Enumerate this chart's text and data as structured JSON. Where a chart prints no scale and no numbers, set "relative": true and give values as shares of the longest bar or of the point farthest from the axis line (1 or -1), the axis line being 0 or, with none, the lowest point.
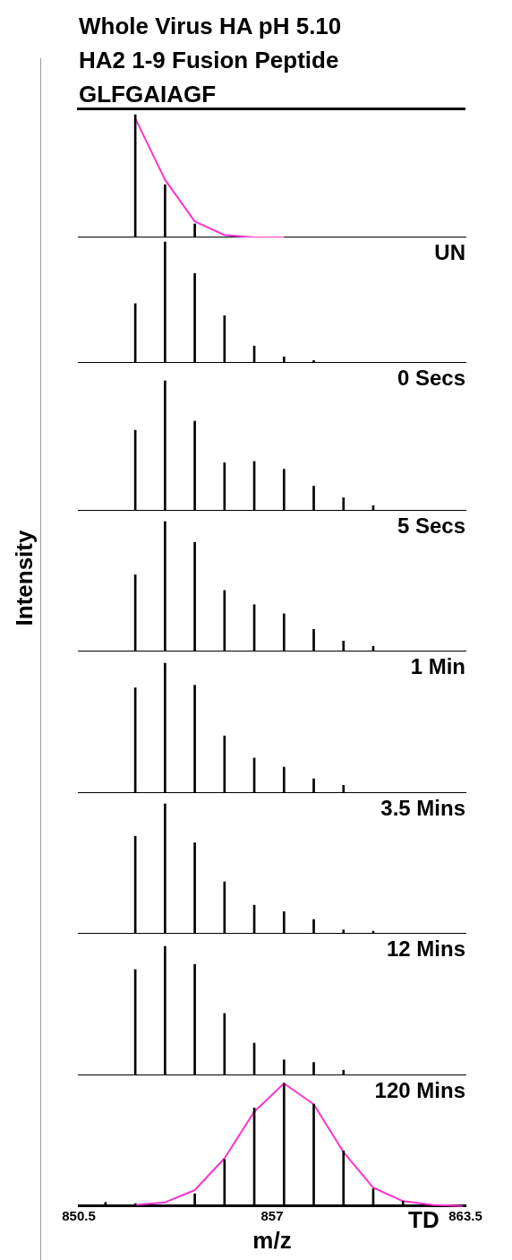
{
  "chart_data": [
    {
      "type": "bar",
      "title": "Whole Virus HA pH 5.10",
      "subtitle": "HA2 1-9 Fusion Peptide\nGLFGAIAGF",
      "relative": true,
      "tick_labels": false,
      "marker": "none",
      "xlim": [
        850.5,
        863.5
      ],
      "xticks": [
        850.5,
        857,
        863.5
      ],
      "x": [
        852.4,
        853.4,
        854.4
      ],
      "series": [
        {
          "color": "#000000",
          "values": [
            1,
            0.43,
            0.11
          ]
        },
        {
          "type": "line",
          "color": "#ff33cc",
          "x": [
            852.4,
            853.4,
            854.4,
            855.4,
            856.4,
            857.4
          ],
          "values": [
            0.97,
            0.47,
            0.13,
            0.02,
            0,
            0
          ]
        }
      ]
    },
    {
      "type": "bar",
      "relative": true,
      "tick_labels": false,
      "annotations": [
        "UN"
      ],
      "xlim": [
        850.5,
        863.5
      ],
      "xticks": [
        850.5,
        857,
        863.5
      ],
      "x": [
        852.4,
        853.4,
        854.4,
        855.4,
        856.4,
        857.4,
        858.4
      ],
      "series": [
        {
          "color": "#000000",
          "values": [
            0.49,
            1,
            0.74,
            0.39,
            0.14,
            0.05,
            0.02
          ]
        }
      ]
    },
    {
      "type": "bar",
      "relative": true,
      "tick_labels": false,
      "annotations": [
        "0 Secs"
      ],
      "xlim": [
        850.5,
        863.5
      ],
      "xticks": [
        850.5,
        857,
        863.5
      ],
      "x": [
        852.4,
        853.4,
        854.4,
        855.4,
        856.4,
        857.4,
        858.4,
        859.4,
        860.4
      ],
      "series": [
        {
          "color": "#000000",
          "values": [
            0.62,
            1,
            0.69,
            0.37,
            0.38,
            0.32,
            0.19,
            0.1,
            0.04
          ]
        }
      ]
    },
    {
      "type": "bar",
      "ylabel": "Intensity",
      "relative": true,
      "tick_labels": false,
      "annotations": [
        "5 Secs"
      ],
      "xlim": [
        850.5,
        863.5
      ],
      "xticks": [
        850.5,
        857,
        863.5
      ],
      "x": [
        852.4,
        853.4,
        854.4,
        855.4,
        856.4,
        857.4,
        858.4,
        859.4,
        860.4
      ],
      "series": [
        {
          "color": "#000000",
          "values": [
            0.59,
            1,
            0.84,
            0.47,
            0.36,
            0.29,
            0.17,
            0.08,
            0.04
          ]
        }
      ]
    },
    {
      "type": "bar",
      "relative": true,
      "tick_labels": false,
      "annotations": [
        "1 Min"
      ],
      "xlim": [
        850.5,
        863.5
      ],
      "xticks": [
        850.5,
        857,
        863.5
      ],
      "x": [
        852.4,
        853.4,
        854.4,
        855.4,
        856.4,
        857.4,
        858.4,
        859.4
      ],
      "series": [
        {
          "color": "#000000",
          "values": [
            0.81,
            1,
            0.83,
            0.44,
            0.27,
            0.2,
            0.11,
            0.06
          ]
        }
      ]
    },
    {
      "type": "bar",
      "relative": true,
      "tick_labels": false,
      "annotations": [
        "3.5 Mins"
      ],
      "xlim": [
        850.5,
        863.5
      ],
      "xticks": [
        850.5,
        857,
        863.5
      ],
      "x": [
        852.4,
        853.4,
        854.4,
        855.4,
        856.4,
        857.4,
        858.4,
        859.4,
        860.4
      ],
      "series": [
        {
          "color": "#000000",
          "values": [
            0.75,
            1,
            0.7,
            0.4,
            0.22,
            0.17,
            0.11,
            0.03,
            0.02
          ]
        }
      ]
    },
    {
      "type": "bar",
      "relative": true,
      "tick_labels": false,
      "annotations": [
        "12 Mins"
      ],
      "xlim": [
        850.5,
        863.5
      ],
      "xticks": [
        850.5,
        857,
        863.5
      ],
      "x": [
        852.4,
        853.4,
        854.4,
        855.4,
        856.4,
        857.4,
        858.4,
        859.4
      ],
      "series": [
        {
          "color": "#000000",
          "values": [
            0.82,
            1,
            0.86,
            0.48,
            0.25,
            0.12,
            0.1,
            0.04
          ]
        }
      ]
    },
    {
      "type": "bar",
      "relative": true,
      "tick_labels": "x",
      "marker": "none",
      "xlabel": "m/z",
      "annotations": [
        "120 Mins"
      ],
      "xlim": [
        850.5,
        863.5
      ],
      "xticks": [
        850.5,
        857,
        863.5
      ],
      "x": [
        851.4,
        852.4,
        854.4,
        855.4,
        856.4,
        857.4,
        858.4,
        859.4,
        860.4,
        861.4
      ],
      "series": [
        {
          "color": "#000000",
          "values": [
            0.03,
            0.02,
            0.1,
            0.38,
            0.8,
            1,
            0.83,
            0.45,
            0.14,
            0.04
          ]
        },
        {
          "type": "line",
          "name": "TD",
          "color": "#ff33cc",
          "x": [
            852.4,
            853.4,
            854.4,
            855.4,
            856.4,
            857.4,
            858.4,
            859.4,
            860.4,
            861.4,
            862.4,
            863.4
          ],
          "values": [
            0.01,
            0.03,
            0.13,
            0.39,
            0.77,
            1,
            0.83,
            0.44,
            0.15,
            0.04,
            0.01,
            0
          ]
        }
      ]
    }
  ]
}
